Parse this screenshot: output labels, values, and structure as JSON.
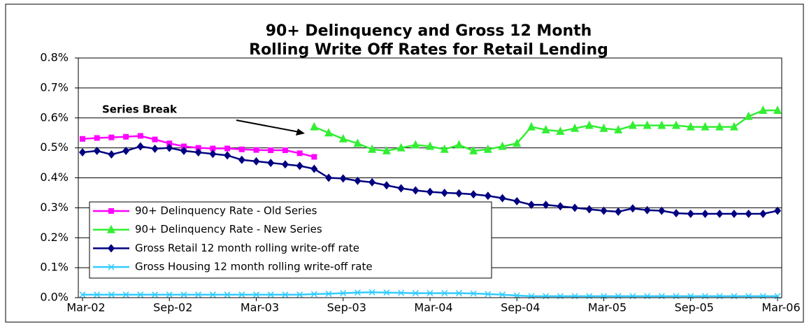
{
  "chart_data": {
    "type": "line",
    "title": [
      "90+ Delinquency and Gross 12 Month",
      "Rolling Write Off Rates for Retail Lending"
    ],
    "annotation": "Series Break",
    "categories": [
      "Mar-02",
      null,
      null,
      null,
      null,
      null,
      "Sep-02",
      null,
      null,
      null,
      null,
      null,
      "Mar-03",
      null,
      null,
      null,
      null,
      null,
      "Sep-03",
      null,
      null,
      null,
      null,
      null,
      "Mar-04",
      null,
      null,
      null,
      null,
      null,
      "Sep-04",
      null,
      null,
      null,
      null,
      null,
      "Mar-05",
      null,
      null,
      null,
      null,
      null,
      "Sep-05",
      null,
      null,
      null,
      null,
      null,
      "Mar-06"
    ],
    "ylim": [
      0,
      0.8
    ],
    "yticks": [
      {
        "value": 0,
        "label": "0.0%"
      },
      {
        "value": 0.1,
        "label": "0.1%"
      },
      {
        "value": 0.2,
        "label": "0.2%"
      },
      {
        "value": 0.3,
        "label": "0.3%"
      },
      {
        "value": 0.4,
        "label": "0.4%"
      },
      {
        "value": 0.5,
        "label": "0.5%"
      },
      {
        "value": 0.6,
        "label": "0.6%"
      },
      {
        "value": 0.7,
        "label": "0.7%"
      },
      {
        "value": 0.8,
        "label": "0.8%"
      }
    ],
    "grid": true,
    "series": [
      {
        "name": "90+ Delinquency Rate - Old Series",
        "color": "#ff00ff",
        "marker": "square",
        "values": [
          0.53,
          0.533,
          0.535,
          0.537,
          0.54,
          0.528,
          0.515,
          0.505,
          0.5,
          0.498,
          0.498,
          0.495,
          0.493,
          0.492,
          0.492,
          0.482,
          0.47,
          null,
          null,
          null,
          null,
          null,
          null,
          null,
          null,
          null,
          null,
          null,
          null,
          null,
          null,
          null,
          null,
          null,
          null,
          null,
          null,
          null,
          null,
          null,
          null,
          null,
          null,
          null,
          null,
          null,
          null,
          null,
          null
        ]
      },
      {
        "name": "90+ Delinquency Rate - New Series",
        "color": "#33ee33",
        "marker": "triangle",
        "values": [
          null,
          null,
          null,
          null,
          null,
          null,
          null,
          null,
          null,
          null,
          null,
          null,
          null,
          null,
          null,
          null,
          0.57,
          0.55,
          0.53,
          0.515,
          0.495,
          0.49,
          0.5,
          0.51,
          0.505,
          0.495,
          0.51,
          0.49,
          0.495,
          0.505,
          0.515,
          0.57,
          0.56,
          0.555,
          0.565,
          0.575,
          0.565,
          0.56,
          0.575,
          0.575,
          0.575,
          0.575,
          0.57,
          0.57,
          0.57,
          0.57,
          0.605,
          0.625,
          0.625
        ]
      },
      {
        "name": "Gross Retail 12 month rolling write-off rate",
        "color": "#000080",
        "marker": "diamond",
        "values": [
          0.485,
          0.49,
          0.478,
          0.49,
          0.505,
          0.497,
          0.5,
          0.49,
          0.485,
          0.48,
          0.475,
          0.46,
          0.455,
          0.45,
          0.445,
          0.44,
          0.43,
          0.4,
          0.398,
          0.39,
          0.385,
          0.375,
          0.365,
          0.358,
          0.353,
          0.35,
          0.348,
          0.345,
          0.34,
          0.332,
          0.322,
          0.31,
          0.31,
          0.305,
          0.3,
          0.295,
          0.29,
          0.287,
          0.298,
          0.292,
          0.29,
          0.282,
          0.28,
          0.28,
          0.28,
          0.28,
          0.28,
          0.28,
          0.29
        ]
      },
      {
        "name": "Gross Housing 12 month rolling write-off rate",
        "color": "#33ccff",
        "marker": "x",
        "values": [
          0.01,
          0.01,
          0.01,
          0.01,
          0.01,
          0.01,
          0.01,
          0.01,
          0.01,
          0.01,
          0.01,
          0.01,
          0.01,
          0.01,
          0.01,
          0.01,
          0.012,
          0.013,
          0.015,
          0.017,
          0.018,
          0.017,
          0.016,
          0.015,
          0.015,
          0.015,
          0.015,
          0.014,
          0.012,
          0.01,
          0.007,
          0.005,
          0.005,
          0.005,
          0.005,
          0.005,
          0.005,
          0.005,
          0.005,
          0.005,
          0.005,
          0.005,
          0.005,
          0.005,
          0.005,
          0.005,
          0.005,
          0.005,
          0.005
        ]
      }
    ]
  }
}
